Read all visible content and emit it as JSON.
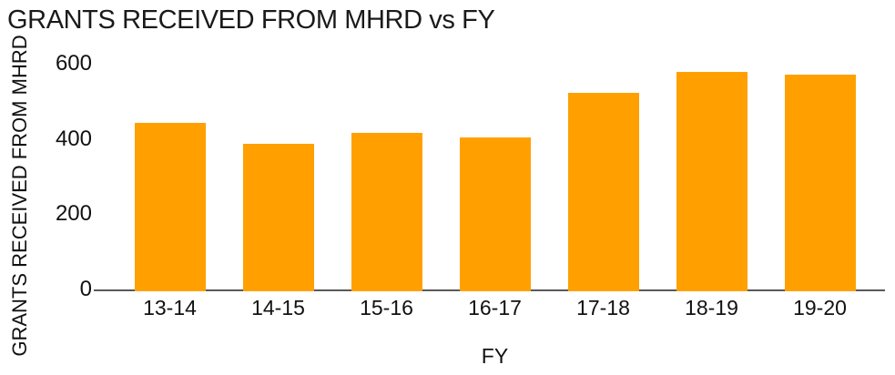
{
  "page": {
    "background": "#ffffff"
  },
  "chart_data": {
    "type": "bar",
    "title": "GRANTS RECEIVED FROM MHRD vs FY",
    "xlabel": "FY",
    "ylabel": "GRANTS RECEIVED FROM MHRD",
    "categories": [
      "13-14",
      "14-15",
      "15-16",
      "16-17",
      "17-18",
      "18-19",
      "19-20"
    ],
    "values": [
      447,
      392,
      422,
      410,
      528,
      582,
      575
    ],
    "yticks": [
      0,
      200,
      400,
      600
    ],
    "ylim": [
      0,
      600
    ],
    "grid": false,
    "legend": "none",
    "colors": {
      "bar": "#FFA000",
      "axis_line": "#595959",
      "text": "#111111"
    }
  }
}
